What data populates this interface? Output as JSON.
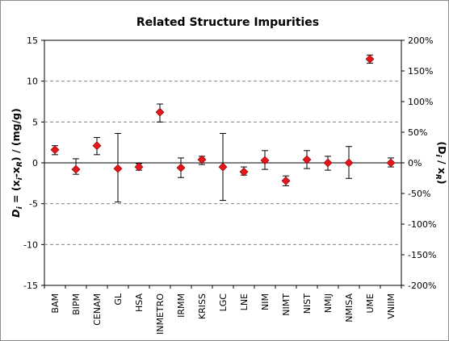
{
  "chart_data": {
    "type": "scatter",
    "title": "Related Structure Impurities",
    "ylabel_left": {
      "main": "D",
      "sub": "i",
      "rest1": " = (x",
      "sub2": "i",
      "rest2": "-x",
      "sub3": "R",
      "rest3": ") / (mg/g)"
    },
    "ylabel_right": {
      "open": "(D",
      "sub": "i",
      "mid": " / x",
      "sub2": "R",
      "close": ")"
    },
    "ylim": [
      -15,
      15
    ],
    "yticks": [
      -15,
      -10,
      -5,
      0,
      5,
      10,
      15
    ],
    "y2lim_percent": [
      -200,
      200
    ],
    "y2ticks": [
      "-200%",
      "-150%",
      "-100%",
      "-50%",
      "0%",
      "50%",
      "100%",
      "150%",
      "200%"
    ],
    "grid": "horizontal-dashed",
    "marker_color": "#e8141c",
    "errorbar_color": "#000000",
    "categories": [
      "BAM",
      "BIPM",
      "CENAM",
      "GL",
      "HSA",
      "INMETRO",
      "IRMM",
      "KRISS",
      "LGC",
      "LNE",
      "NIM",
      "NIMT",
      "NIST",
      "NMIJ",
      "NMISA",
      "UME",
      "VNIIM"
    ],
    "values": [
      1.6,
      -0.8,
      2.1,
      -0.7,
      -0.5,
      6.2,
      -0.6,
      0.4,
      -0.5,
      -1.1,
      0.3,
      -2.2,
      0.4,
      0.0,
      0.0,
      12.7,
      0.0
    ],
    "err_low": [
      1.0,
      -1.4,
      1.0,
      -4.8,
      -0.9,
      5.0,
      -1.8,
      -0.2,
      -4.6,
      -1.5,
      -0.8,
      -2.8,
      -0.7,
      -0.9,
      -1.9,
      12.2,
      -0.5
    ],
    "err_high": [
      2.1,
      0.5,
      3.1,
      3.6,
      -0.1,
      7.2,
      0.6,
      0.8,
      3.6,
      -0.5,
      1.5,
      -1.6,
      1.5,
      0.8,
      2.0,
      13.2,
      0.6
    ]
  }
}
